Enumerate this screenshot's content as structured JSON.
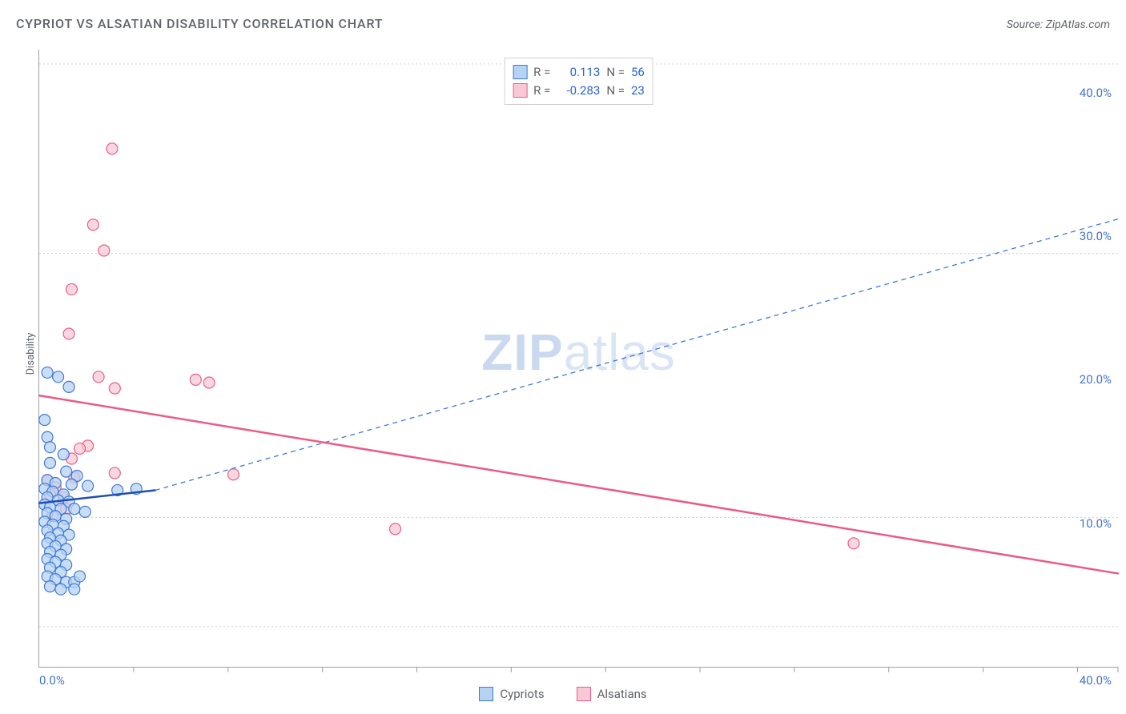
{
  "title": "CYPRIOT VS ALSATIAN DISABILITY CORRELATION CHART",
  "source": "Source: ZipAtlas.com",
  "ylabel": "Disability",
  "watermark": {
    "bold": "ZIP",
    "rest": "atlas"
  },
  "chart": {
    "type": "scatter-with-regression",
    "xlim": [
      0,
      40
    ],
    "ylim": [
      0,
      43
    ],
    "ytick_labels": [
      {
        "value": 10,
        "text": "10.0%"
      },
      {
        "value": 20,
        "text": "20.0%"
      },
      {
        "value": 30,
        "text": "30.0%"
      },
      {
        "value": 40,
        "text": "40.0%"
      }
    ],
    "y_gridlines": [
      2.8,
      10.4,
      28.8,
      42
    ],
    "x_ticks": [
      3.5,
      7,
      10.5,
      14,
      17.5,
      21,
      24.5,
      28,
      31.5,
      35,
      38.5,
      40
    ],
    "xaxis_labels": {
      "zero": "0.0%",
      "max": "40.0%"
    },
    "background_color": "#ffffff",
    "grid_color": "#d0d0d0",
    "axis_color": "#9aa0a6",
    "series": [
      {
        "name": "Cypriots",
        "marker_fill": "#b7d3f2",
        "marker_stroke": "#3f79d6",
        "marker_radius": 7,
        "marker_opacity": 0.75,
        "R": "0.113",
        "N": "56",
        "regression_solid": {
          "x1": 0,
          "y1": 11.4,
          "x2": 4.3,
          "y2": 12.3,
          "color": "#1f4fb5",
          "width": 2.5
        },
        "regression_dash": {
          "x1": 4.3,
          "y1": 12.3,
          "x2": 40,
          "y2": 31.2,
          "color": "#3f79d6",
          "width": 1.3,
          "dash": "6 5"
        },
        "points": [
          [
            0.3,
            20.5
          ],
          [
            0.7,
            20.2
          ],
          [
            1.1,
            19.5
          ],
          [
            0.2,
            17.2
          ],
          [
            0.3,
            16.0
          ],
          [
            0.4,
            15.3
          ],
          [
            0.9,
            14.8
          ],
          [
            0.4,
            14.2
          ],
          [
            1.0,
            13.6
          ],
          [
            1.4,
            13.3
          ],
          [
            0.3,
            13.0
          ],
          [
            0.6,
            12.8
          ],
          [
            1.2,
            12.7
          ],
          [
            1.8,
            12.6
          ],
          [
            0.2,
            12.4
          ],
          [
            0.5,
            12.2
          ],
          [
            0.9,
            12.0
          ],
          [
            2.9,
            12.3
          ],
          [
            3.6,
            12.4
          ],
          [
            0.3,
            11.8
          ],
          [
            0.7,
            11.6
          ],
          [
            1.1,
            11.5
          ],
          [
            0.2,
            11.3
          ],
          [
            0.4,
            11.1
          ],
          [
            0.8,
            11.0
          ],
          [
            1.3,
            11.0
          ],
          [
            0.3,
            10.7
          ],
          [
            0.6,
            10.5
          ],
          [
            1.0,
            10.3
          ],
          [
            0.2,
            10.1
          ],
          [
            0.5,
            9.9
          ],
          [
            0.9,
            9.8
          ],
          [
            0.3,
            9.5
          ],
          [
            0.7,
            9.3
          ],
          [
            1.1,
            9.2
          ],
          [
            0.4,
            9.0
          ],
          [
            0.8,
            8.8
          ],
          [
            0.3,
            8.6
          ],
          [
            0.6,
            8.4
          ],
          [
            1.0,
            8.2
          ],
          [
            0.4,
            8.0
          ],
          [
            0.8,
            7.8
          ],
          [
            0.3,
            7.5
          ],
          [
            0.6,
            7.3
          ],
          [
            1.0,
            7.1
          ],
          [
            0.4,
            6.9
          ],
          [
            0.8,
            6.6
          ],
          [
            0.3,
            6.3
          ],
          [
            0.6,
            6.1
          ],
          [
            1.0,
            5.9
          ],
          [
            1.3,
            5.9
          ],
          [
            0.4,
            5.6
          ],
          [
            0.8,
            5.4
          ],
          [
            1.3,
            5.4
          ],
          [
            1.5,
            6.3
          ],
          [
            1.7,
            10.8
          ]
        ]
      },
      {
        "name": "Alsatians",
        "marker_fill": "#f7c9d6",
        "marker_stroke": "#e85f8a",
        "marker_radius": 7,
        "marker_opacity": 0.75,
        "R": "-0.283",
        "N": "23",
        "regression_solid": {
          "x1": 0,
          "y1": 18.9,
          "x2": 40,
          "y2": 6.5,
          "color": "#ea5b86",
          "width": 2.5
        },
        "points": [
          [
            2.7,
            36.1
          ],
          [
            2.0,
            30.8
          ],
          [
            2.4,
            29.0
          ],
          [
            1.2,
            26.3
          ],
          [
            1.1,
            23.2
          ],
          [
            2.2,
            20.2
          ],
          [
            2.8,
            19.4
          ],
          [
            6.3,
            19.8
          ],
          [
            5.8,
            20.0
          ],
          [
            1.8,
            15.4
          ],
          [
            1.5,
            15.2
          ],
          [
            2.8,
            13.5
          ],
          [
            1.3,
            13.2
          ],
          [
            0.6,
            12.5
          ],
          [
            0.9,
            11.8
          ],
          [
            0.4,
            12.0
          ],
          [
            0.3,
            13.0
          ],
          [
            1.0,
            11.0
          ],
          [
            0.5,
            10.5
          ],
          [
            1.2,
            14.5
          ],
          [
            7.2,
            13.4
          ],
          [
            13.2,
            9.6
          ],
          [
            30.2,
            8.6
          ]
        ]
      }
    ]
  },
  "legend_top": {
    "r_label": "R  =",
    "n_label": "N  ="
  },
  "legend_bottom": [
    {
      "label": "Cypriots",
      "fill": "#b7d3f2",
      "stroke": "#3f79d6"
    },
    {
      "label": "Alsatians",
      "fill": "#f7c9d6",
      "stroke": "#e85f8a"
    }
  ]
}
